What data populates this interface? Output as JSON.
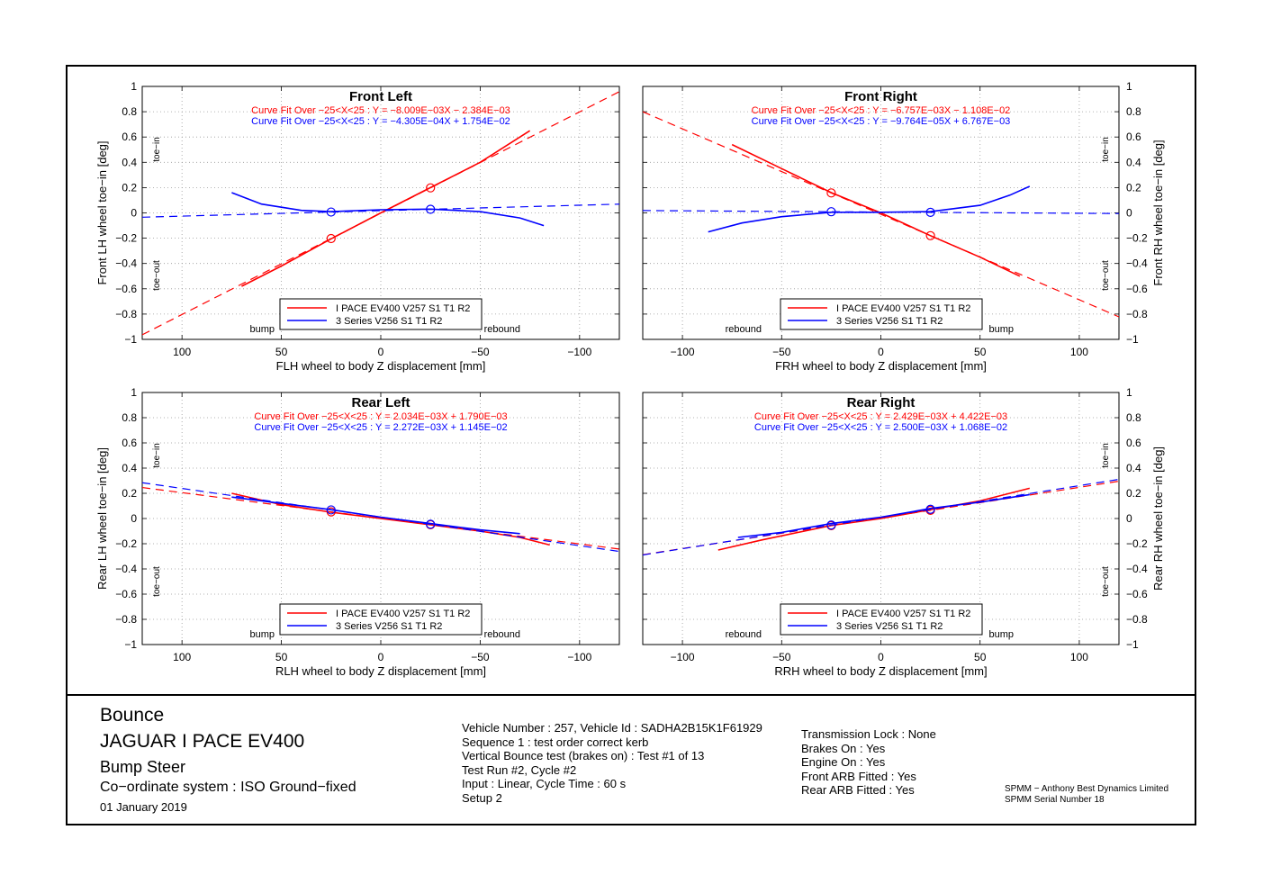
{
  "colors": {
    "series1": "#ff0000",
    "series2": "#0000ff",
    "frame": "#000000",
    "grid": "#9a9a9a"
  },
  "chart_data": [
    {
      "type": "line",
      "title": "Front Left",
      "xlabel": "FLH wheel to body Z displacement [mm]",
      "ylabel": "Front LH wheel toe−in [deg]",
      "xlim": [
        120,
        -120
      ],
      "ylim": [
        -1,
        1
      ],
      "xticks": [
        "100",
        "50",
        "0",
        "−50",
        "−100"
      ],
      "yticks": [
        "1",
        "0.8",
        "0.6",
        "0.4",
        "0.2",
        "0",
        "−0.2",
        "−0.4",
        "−0.6",
        "−0.8",
        "−1"
      ],
      "ytick_side": "left",
      "fits": [
        "Curve Fit Over −25<X<25 : Y = −8.009E−03X − 2.384E−03",
        "Curve Fit Over −25<X<25 : Y = −4.305E−04X + 1.754E−02"
      ],
      "toe_in": "toe−in",
      "toe_out": "toe−out",
      "bump_label": "bump",
      "rebound_label": "rebound",
      "bump_side": "left",
      "legend": [
        "I PACE EV400 V257 S1 T1 R2",
        "3 Series V256 S1 T1 R2"
      ],
      "series": [
        {
          "name": "I PACE EV400 V257 S1 T1 R2",
          "x": [
            70,
            50,
            25,
            0,
            -25,
            -50,
            -75
          ],
          "y": [
            -0.58,
            -0.42,
            -0.205,
            0.0,
            0.2,
            0.4,
            0.65
          ],
          "fit": [
            -0.008009,
            -0.002384
          ],
          "markers": [
            25,
            -25
          ]
        },
        {
          "name": "3 Series V256 S1 T1 R2",
          "x": [
            75,
            60,
            40,
            25,
            0,
            -25,
            -50,
            -70,
            -82
          ],
          "y": [
            0.16,
            0.07,
            0.02,
            0.01,
            0.025,
            0.03,
            0.01,
            -0.04,
            -0.1
          ],
          "fit": [
            -0.0004305,
            0.01754
          ],
          "markers": [
            25,
            -25
          ]
        }
      ]
    },
    {
      "type": "line",
      "title": "Front Right",
      "xlabel": "FRH wheel to body Z displacement [mm]",
      "ylabel": "Front RH wheel toe−in [deg]",
      "xlim": [
        -120,
        120
      ],
      "ylim": [
        -1,
        1
      ],
      "xticks": [
        "−100",
        "−50",
        "0",
        "50",
        "100"
      ],
      "yticks": [
        "1",
        "0.8",
        "0.6",
        "0.4",
        "0.2",
        "0",
        "−0.2",
        "−0.4",
        "−0.6",
        "−0.8",
        "−1"
      ],
      "ytick_side": "right",
      "fits": [
        "Curve Fit Over −25<X<25 : Y = −6.757E−03X − 1.108E−02",
        "Curve Fit Over −25<X<25 : Y = −9.764E−05X + 6.767E−03"
      ],
      "toe_in": "toe−in",
      "toe_out": "toe−out",
      "bump_label": "bump",
      "rebound_label": "rebound",
      "bump_side": "right",
      "legend": [
        "I PACE EV400 V257 S1 T1 R2",
        "3 Series V256 S1 T1 R2"
      ],
      "series": [
        {
          "name": "I PACE EV400 V257 S1 T1 R2",
          "x": [
            -75,
            -50,
            -25,
            0,
            25,
            50,
            70
          ],
          "y": [
            0.54,
            0.35,
            0.16,
            0.0,
            -0.18,
            -0.35,
            -0.5
          ],
          "fit": [
            -0.006757,
            -0.01108
          ],
          "markers": [
            -25,
            25
          ]
        },
        {
          "name": "3 Series V256 S1 T1 R2",
          "x": [
            -87,
            -70,
            -50,
            -25,
            0,
            25,
            50,
            65,
            75
          ],
          "y": [
            -0.15,
            -0.08,
            -0.03,
            0.005,
            0.005,
            0.01,
            0.06,
            0.14,
            0.21
          ],
          "fit": [
            -9.764e-05,
            0.006767
          ],
          "markers": [
            -25,
            25
          ]
        }
      ]
    },
    {
      "type": "line",
      "title": "Rear Left",
      "xlabel": "RLH wheel to body Z displacement [mm]",
      "ylabel": "Rear LH wheel toe−in [deg]",
      "xlim": [
        120,
        -120
      ],
      "ylim": [
        -1,
        1
      ],
      "xticks": [
        "100",
        "50",
        "0",
        "−50",
        "−100"
      ],
      "yticks": [
        "1",
        "0.8",
        "0.6",
        "0.4",
        "0.2",
        "0",
        "−0.2",
        "−0.4",
        "−0.6",
        "−0.8",
        "−1"
      ],
      "ytick_side": "left",
      "fits": [
        "Curve Fit Over −25<X<25 : Y = 2.034E−03X + 1.790E−03",
        "Curve Fit Over −25<X<25 : Y = 2.272E−03X + 1.145E−02"
      ],
      "toe_in": "toe−in",
      "toe_out": "toe−out",
      "bump_label": "bump",
      "rebound_label": "rebound",
      "bump_side": "left",
      "legend": [
        "I PACE EV400 V257 S1 T1 R2",
        "3 Series V256 S1 T1 R2"
      ],
      "series": [
        {
          "name": "I PACE EV400 V257 S1 T1 R2",
          "x": [
            75,
            50,
            25,
            0,
            -25,
            -50,
            -70,
            -85
          ],
          "y": [
            0.2,
            0.11,
            0.05,
            0.0,
            -0.05,
            -0.1,
            -0.15,
            -0.21
          ],
          "fit": [
            0.002034,
            0.00179
          ],
          "markers": [
            25,
            -25
          ]
        },
        {
          "name": "3 Series V256 S1 T1 R2",
          "x": [
            75,
            50,
            25,
            0,
            -25,
            -50,
            -70
          ],
          "y": [
            0.17,
            0.12,
            0.07,
            0.01,
            -0.04,
            -0.09,
            -0.12
          ],
          "fit": [
            0.002272,
            0.01145
          ],
          "markers": [
            25,
            -25
          ]
        }
      ]
    },
    {
      "type": "line",
      "title": "Rear Right",
      "xlabel": "RRH wheel to body Z displacement [mm]",
      "ylabel": "Rear RH wheel toe−in [deg]",
      "xlim": [
        -120,
        120
      ],
      "ylim": [
        -1,
        1
      ],
      "xticks": [
        "−100",
        "−50",
        "0",
        "50",
        "100"
      ],
      "yticks": [
        "1",
        "0.8",
        "0.6",
        "0.4",
        "0.2",
        "0",
        "−0.2",
        "−0.4",
        "−0.6",
        "−0.8",
        "−1"
      ],
      "ytick_side": "right",
      "fits": [
        "Curve Fit Over −25<X<25 : Y = 2.429E−03X + 4.422E−03",
        "Curve Fit Over −25<X<25 : Y = 2.500E−03X + 1.068E−02"
      ],
      "toe_in": "toe−in",
      "toe_out": "toe−out",
      "bump_label": "bump",
      "rebound_label": "rebound",
      "bump_side": "right",
      "legend": [
        "I PACE EV400 V257 S1 T1 R2",
        "3 Series V256 S1 T1 R2"
      ],
      "series": [
        {
          "name": "I PACE EV400 V257 S1 T1 R2",
          "x": [
            -82,
            -60,
            -25,
            0,
            25,
            50,
            75
          ],
          "y": [
            -0.25,
            -0.17,
            -0.055,
            0.0,
            0.07,
            0.14,
            0.24
          ],
          "fit": [
            0.002429,
            0.004422
          ],
          "markers": [
            -25,
            25
          ]
        },
        {
          "name": "3 Series V256 S1 T1 R2",
          "x": [
            -72,
            -50,
            -25,
            0,
            25,
            50,
            75
          ],
          "y": [
            -0.15,
            -0.11,
            -0.04,
            0.01,
            0.08,
            0.13,
            0.19
          ],
          "fit": [
            0.0025,
            0.01068
          ],
          "markers": [
            -25,
            25
          ]
        }
      ]
    }
  ],
  "info": {
    "title": "Bounce",
    "vehicle": "JAGUAR I PACE EV400",
    "analysis": "Bump Steer",
    "coords": "Co−ordinate system : ISO Ground−fixed",
    "date": "01 January 2019",
    "details": [
      "Vehicle Number : 257, Vehicle Id : SADHA2B15K1F61929",
      "Sequence 1 : test order correct kerb",
      "Vertical Bounce test (brakes on) : Test #1 of 13",
      "Test Run #2, Cycle #2",
      "Input : Linear, Cycle Time : 60 s",
      "Setup 2"
    ],
    "settings": [
      "Transmission Lock : None",
      "Brakes On : Yes",
      "Engine On : Yes",
      "Front ARB Fitted : Yes",
      "Rear ARB Fitted : Yes"
    ],
    "credit1": "SPMM − Anthony Best Dynamics Limited",
    "credit2": "SPMM Serial Number 18"
  }
}
